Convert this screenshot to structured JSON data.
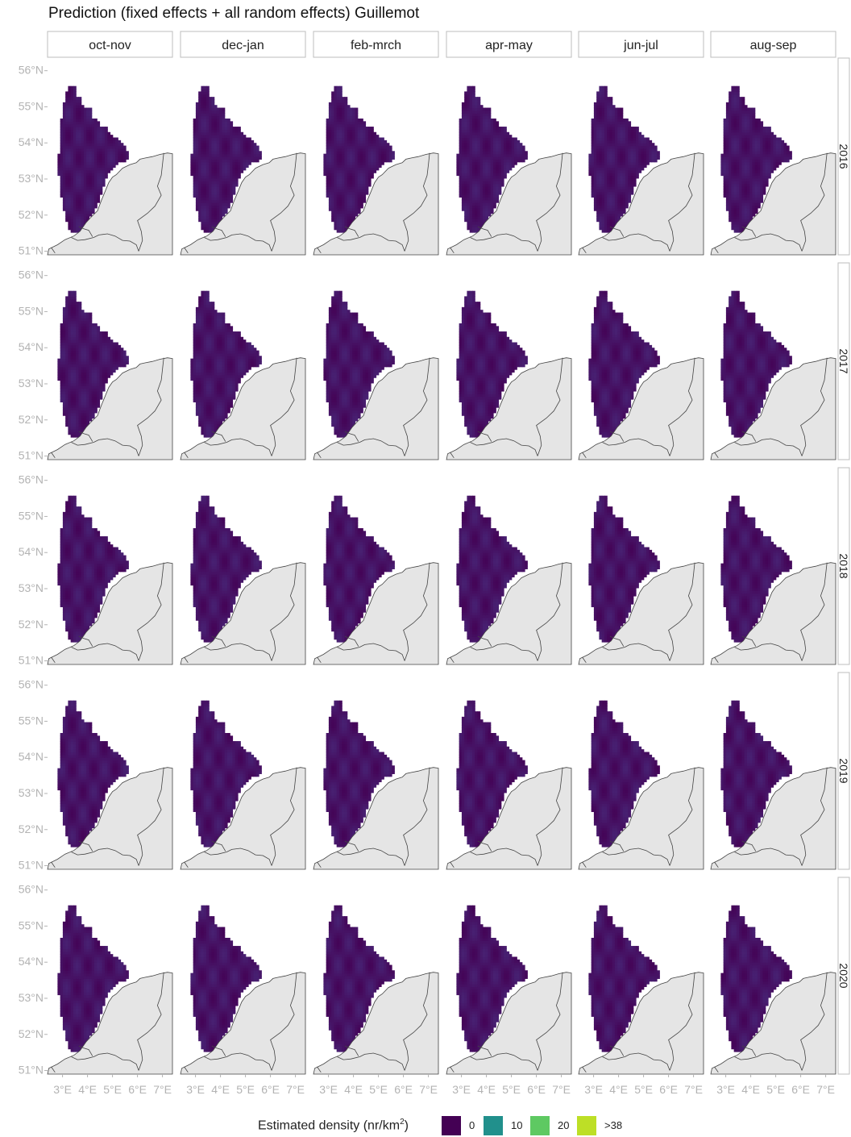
{
  "title": "Prediction (fixed effects + all random effects) Guillemot",
  "columns": [
    "oct-nov",
    "dec-jan",
    "feb-mrch",
    "apr-may",
    "jun-jul",
    "aug-sep"
  ],
  "rows": [
    "2016",
    "2017",
    "2018",
    "2019",
    "2020"
  ],
  "y_ticks": [
    "56°N",
    "55°N",
    "54°N",
    "53°N",
    "52°N",
    "51°N"
  ],
  "x_ticks": [
    "3°E",
    "4°E",
    "5°E",
    "6°E",
    "7°E"
  ],
  "legend": {
    "title": "Estimated density (nr/km",
    "title_sup": "2",
    "title_close": ")",
    "items": [
      {
        "label": "0",
        "color": "#440154"
      },
      {
        "label": "10",
        "color": "#21908c"
      },
      {
        "label": "20",
        "color": "#5ec962"
      },
      {
        "label": ">38",
        "color": "#bddf26"
      }
    ]
  },
  "colors": {
    "land": "#e5e5e5",
    "coast": "#444444",
    "strip": "#ffffff",
    "strip_border": "#bdbdbd",
    "axis_text": "#b3b3b3"
  },
  "hotspots": [
    [
      [
        [
          0.8,
          54.4,
          54.4,
          0.55
        ]
      ],
      [
        [
          0.9,
          53.7,
          53.7,
          0.6
        ],
        [
          0.4,
          54.4,
          55.2,
          0.5
        ],
        [
          0.5,
          52.2,
          51.9,
          0.5
        ]
      ],
      [
        [
          0.4,
          53.7,
          52.8,
          0.5
        ],
        [
          0.4,
          51.8,
          51.6,
          0.4
        ]
      ],
      [
        [
          0.25,
          54.0,
          54.8,
          0.6
        ]
      ],
      [
        [
          1.3,
          54.2,
          54.0,
          0.5
        ],
        [
          1.2,
          55.0,
          55.0,
          0.4
        ],
        [
          1.1,
          53.9,
          53.9,
          0.45
        ],
        [
          1.0,
          54.7,
          53.5,
          0.4
        ]
      ],
      [
        [
          2.8,
          54.6,
          54.5,
          0.4
        ],
        [
          1.8,
          54.9,
          54.9,
          0.5
        ],
        [
          1.5,
          54.2,
          53.9,
          0.5
        ]
      ]
    ],
    [
      [
        [
          1.8,
          55.1,
          55.0,
          0.25
        ],
        [
          0.5,
          54.0,
          52.5,
          0.5
        ]
      ],
      [
        [
          1.5,
          55.5,
          55.4,
          0.2
        ],
        [
          1.2,
          54.5,
          54.4,
          0.3
        ],
        [
          1.6,
          52.0,
          51.8,
          0.25
        ],
        [
          0.9,
          53.3,
          52.6,
          0.4
        ]
      ],
      [
        [
          1.4,
          55.5,
          55.4,
          0.25
        ],
        [
          0.5,
          54.0,
          53.6,
          0.5
        ]
      ],
      [
        [
          0.25,
          54.5,
          54.6,
          0.5
        ]
      ],
      [
        [
          1.2,
          54.5,
          54.2,
          0.4
        ],
        [
          1.0,
          53.8,
          55.3,
          0.4
        ],
        [
          0.9,
          54.8,
          53.6,
          0.4
        ]
      ],
      [
        [
          1.4,
          54.8,
          54.3,
          0.4
        ],
        [
          1.0,
          54.0,
          53.8,
          0.5
        ]
      ]
    ],
    [
      [
        [
          0.9,
          53.6,
          53.5,
          0.5
        ],
        [
          0.8,
          54.2,
          55.0,
          0.5
        ],
        [
          0.5,
          52.2,
          51.8,
          0.4
        ]
      ],
      [
        [
          1.5,
          53.6,
          53.5,
          0.25
        ],
        [
          1.6,
          54.7,
          53.4,
          0.25
        ],
        [
          1.2,
          54.4,
          54.2,
          0.4
        ],
        [
          0.9,
          54.8,
          53.8,
          0.4
        ],
        [
          0.6,
          52.1,
          51.7,
          0.35
        ]
      ],
      [
        [
          1.6,
          54.5,
          53.5,
          0.35
        ],
        [
          1.0,
          53.9,
          53.8,
          0.5
        ],
        [
          0.6,
          52.0,
          51.7,
          0.35
        ]
      ],
      [
        [
          0.05,
          54.0,
          54.0,
          0.5
        ]
      ],
      [
        [
          0.6,
          54.0,
          54.6,
          0.6
        ],
        [
          0.5,
          55.1,
          55.0,
          0.4
        ]
      ],
      [
        [
          3.2,
          54.5,
          54.3,
          0.35
        ],
        [
          1.6,
          54.4,
          54.0,
          0.55
        ],
        [
          0.8,
          53.6,
          53.4,
          0.45
        ]
      ]
    ],
    [
      [
        [
          0.6,
          54.8,
          53.8,
          0.5
        ],
        [
          0.3,
          53.5,
          53.2,
          0.5
        ]
      ],
      [
        [
          1.4,
          53.7,
          53.5,
          0.3
        ],
        [
          1.0,
          54.9,
          54.2,
          0.4
        ],
        [
          1.0,
          54.2,
          53.6,
          0.45
        ],
        [
          0.7,
          52.5,
          52.3,
          0.45
        ]
      ],
      [
        [
          3.1,
          53.6,
          53.9,
          0.35
        ],
        [
          2.0,
          53.6,
          53.3,
          0.45
        ],
        [
          1.2,
          54.5,
          53.4,
          0.4
        ],
        [
          0.8,
          53.5,
          52.8,
          0.45
        ]
      ],
      [
        [
          0.15,
          54.4,
          54.0,
          0.6
        ]
      ],
      [
        [
          0.5,
          54.8,
          53.8,
          0.5
        ],
        [
          0.4,
          54.2,
          53.2,
          0.5
        ]
      ],
      [
        [
          2.8,
          54.8,
          54.3,
          0.35
        ],
        [
          1.6,
          54.3,
          54.0,
          0.5
        ],
        [
          1.2,
          54.8,
          55.0,
          0.4
        ],
        [
          0.7,
          53.7,
          52.8,
          0.45
        ]
      ]
    ],
    [
      [
        [
          1.2,
          54.9,
          54.7,
          0.35
        ],
        [
          0.9,
          54.1,
          55.2,
          0.45
        ],
        [
          0.9,
          55.4,
          53.7,
          0.4
        ]
      ],
      [
        [
          0.9,
          54.2,
          54.2,
          0.45
        ],
        [
          0.8,
          54.6,
          53.5,
          0.4
        ],
        [
          0.7,
          53.2,
          52.5,
          0.45
        ],
        [
          0.6,
          51.9,
          51.8,
          0.3
        ]
      ],
      [
        [
          1.8,
          55.6,
          53.7,
          0.3
        ],
        [
          1.5,
          53.7,
          54.1,
          0.35
        ],
        [
          1.4,
          55.4,
          55.6,
          0.25
        ],
        [
          1.0,
          54.8,
          54.8,
          0.4
        ],
        [
          0.8,
          52.0,
          51.7,
          0.35
        ]
      ],
      [
        [
          1.5,
          54.8,
          55.3,
          0.35
        ],
        [
          1.2,
          55.3,
          54.7,
          0.35
        ],
        [
          0.7,
          54.4,
          54.1,
          0.5
        ]
      ],
      [
        [
          1.4,
          53.5,
          53.3,
          0.25
        ],
        [
          0.8,
          54.5,
          55.0,
          0.4
        ],
        [
          0.6,
          55.0,
          53.8,
          0.45
        ]
      ],
      [
        [
          2.6,
          54.6,
          53.8,
          0.35
        ],
        [
          1.4,
          54.7,
          54.4,
          0.4
        ],
        [
          1.1,
          53.6,
          53.4,
          0.4
        ],
        [
          1.0,
          54.0,
          52.8,
          0.4
        ],
        [
          1.0,
          55.0,
          55.0,
          0.35
        ]
      ]
    ]
  ]
}
